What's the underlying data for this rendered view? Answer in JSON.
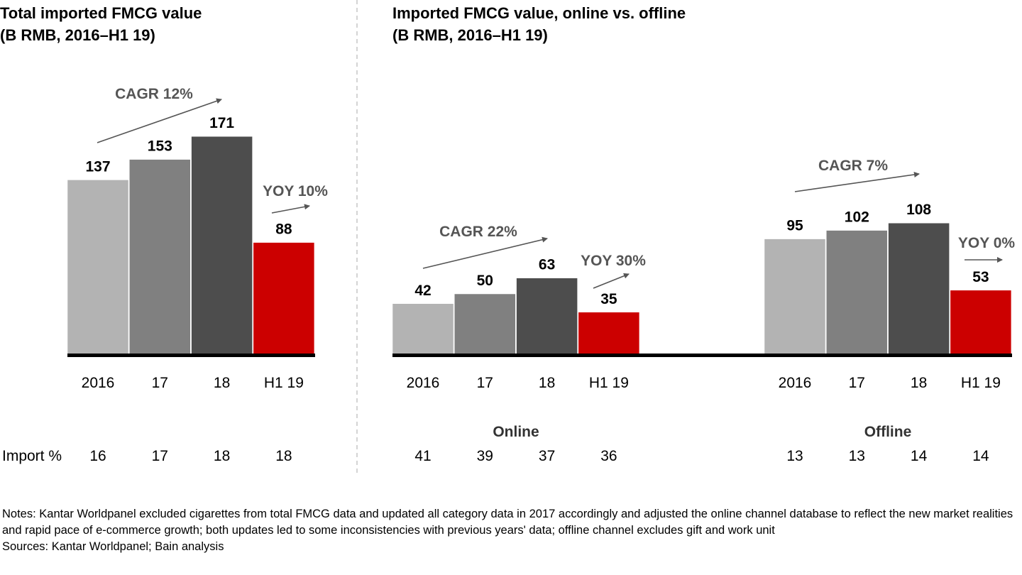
{
  "chart_data": [
    {
      "type": "bar",
      "title": [
        "Total imported FMCG value",
        "(B RMB, 2016–H1 19)"
      ],
      "categories": [
        "2016",
        "17",
        "18",
        "H1 19"
      ],
      "values": [
        137,
        153,
        171,
        88
      ],
      "colors": [
        "#b3b3b3",
        "#808080",
        "#4d4d4d",
        "#cc0000"
      ],
      "annotations": [
        "CAGR 12%",
        "YOY 10%"
      ],
      "import_pct_label": "Import %",
      "import_pct": [
        16,
        17,
        18,
        18
      ]
    },
    {
      "type": "bar",
      "title": [
        "Imported FMCG value, online vs. offline",
        "(B RMB, 2016–H1 19)"
      ],
      "groups": [
        {
          "name": "Online",
          "categories": [
            "2016",
            "17",
            "18",
            "H1 19"
          ],
          "values": [
            42,
            50,
            63,
            35
          ],
          "annotations": [
            "CAGR 22%",
            "YOY 30%"
          ],
          "import_pct": [
            41,
            39,
            37,
            36
          ]
        },
        {
          "name": "Offline",
          "categories": [
            "2016",
            "17",
            "18",
            "H1 19"
          ],
          "values": [
            95,
            102,
            108,
            53
          ],
          "annotations": [
            "CAGR 7%",
            "YOY 0%"
          ],
          "import_pct": [
            13,
            13,
            14,
            14
          ]
        }
      ],
      "colors": [
        "#b3b3b3",
        "#808080",
        "#4d4d4d",
        "#cc0000"
      ]
    }
  ],
  "notes": [
    "Notes: Kantar Worldpanel excluded cigarettes from total FMCG data and updated all category data in 2017 accordingly and adjusted the online channel database to reflect the new market realities and rapid pace of e-commerce growth; both updates led to some inconsistencies with previous years' data; offline channel excludes gift and work unit",
    "Sources: Kantar Worldpanel; Bain analysis"
  ]
}
